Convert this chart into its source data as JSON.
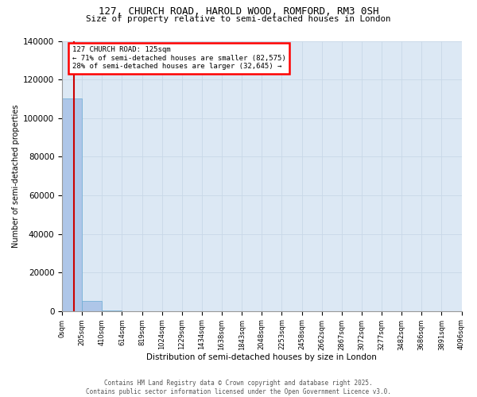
{
  "title_line1": "127, CHURCH ROAD, HAROLD WOOD, ROMFORD, RM3 0SH",
  "title_line2": "Size of property relative to semi-detached houses in London",
  "xlabel": "Distribution of semi-detached houses by size in London",
  "ylabel": "Number of semi-detached properties",
  "property_size": 125,
  "annotation_text_line1": "127 CHURCH ROAD: 125sqm",
  "annotation_text_line2": "← 71% of semi-detached houses are smaller (82,575)",
  "annotation_text_line3": "28% of semi-detached houses are larger (32,645) →",
  "bin_edges": [
    0,
    205,
    410,
    614,
    819,
    1024,
    1229,
    1434,
    1638,
    1843,
    2048,
    2253,
    2458,
    2662,
    2867,
    3072,
    3277,
    3482,
    3686,
    3891,
    4096
  ],
  "bin_labels": [
    "0sqm",
    "205sqm",
    "410sqm",
    "614sqm",
    "819sqm",
    "1024sqm",
    "1229sqm",
    "1434sqm",
    "1638sqm",
    "1843sqm",
    "2048sqm",
    "2253sqm",
    "2458sqm",
    "2662sqm",
    "2867sqm",
    "3072sqm",
    "3277sqm",
    "3482sqm",
    "3686sqm",
    "3891sqm",
    "4096sqm"
  ],
  "bar_heights": [
    110000,
    5200,
    200,
    20,
    5,
    2,
    1,
    1,
    0,
    0,
    0,
    0,
    0,
    0,
    0,
    0,
    0,
    0,
    0,
    0
  ],
  "bar_color": "#aec6e8",
  "bar_edge_color": "#6aacd4",
  "vline_color": "#cc0000",
  "ylim": [
    0,
    140000
  ],
  "yticks": [
    0,
    20000,
    40000,
    60000,
    80000,
    100000,
    120000,
    140000
  ],
  "grid_color": "#c8d8e8",
  "bg_color": "#dce8f4",
  "fig_bg_color": "#ffffff",
  "footer_line1": "Contains HM Land Registry data © Crown copyright and database right 2025.",
  "footer_line2": "Contains public sector information licensed under the Open Government Licence v3.0."
}
